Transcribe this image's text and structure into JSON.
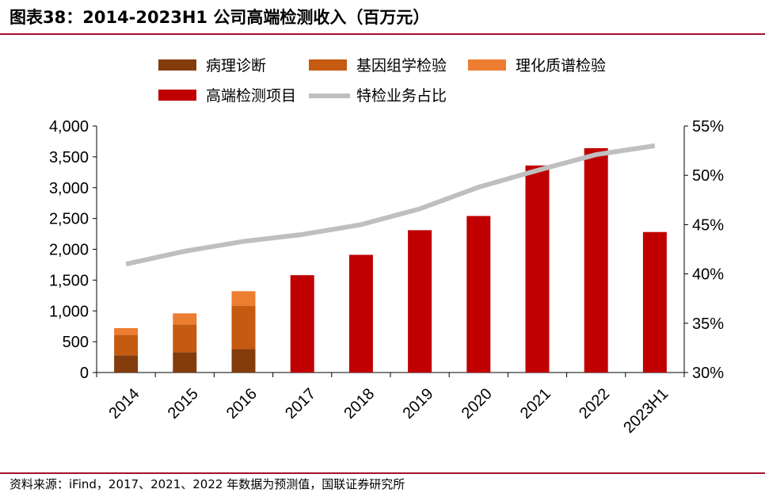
{
  "title": "图表38：2014-2023H1 公司高端检测收入（百万元）",
  "source": "资料来源：iFind，2017、2021、2022 年数据为预测值，国联证券研究所",
  "colors": {
    "rule": "#a5112b",
    "pathology": "#843c0c",
    "genomics": "#c55a11",
    "mass_spec": "#ed7d31",
    "high_end": "#c00000",
    "share_line": "#bfbfbf"
  },
  "chart_data": {
    "type": "bar",
    "stacked": true,
    "categories": [
      "2014",
      "2015",
      "2016",
      "2017",
      "2018",
      "2019",
      "2020",
      "2021",
      "2022",
      "2023H1"
    ],
    "series": [
      {
        "name": "病理诊断",
        "axis": "left",
        "values": [
          280,
          330,
          380,
          null,
          null,
          null,
          null,
          null,
          null,
          null
        ]
      },
      {
        "name": "基因组学检验",
        "axis": "left",
        "values": [
          330,
          450,
          700,
          null,
          null,
          null,
          null,
          null,
          null,
          null
        ]
      },
      {
        "name": "理化质谱检验",
        "axis": "left",
        "values": [
          110,
          180,
          240,
          null,
          null,
          null,
          null,
          null,
          null,
          null
        ]
      },
      {
        "name": "高端检测项目",
        "axis": "left",
        "values": [
          null,
          null,
          null,
          1580,
          1910,
          2310,
          2540,
          3360,
          3640,
          2280
        ]
      },
      {
        "name": "特检业务占比",
        "axis": "right",
        "type": "line",
        "values": [
          41.0,
          42.3,
          43.3,
          44.0,
          45.0,
          46.6,
          48.8,
          50.5,
          52.1,
          53.0
        ]
      }
    ],
    "y_left": {
      "min": 0,
      "max": 4000,
      "ticks": [
        "0",
        "500",
        "1,000",
        "1,500",
        "2,000",
        "2,500",
        "3,000",
        "3,500",
        "4,000"
      ]
    },
    "y_right": {
      "min": 30,
      "max": 55,
      "ticks": [
        "30%",
        "35%",
        "40%",
        "45%",
        "50%",
        "55%"
      ]
    },
    "legend_position": "top"
  }
}
